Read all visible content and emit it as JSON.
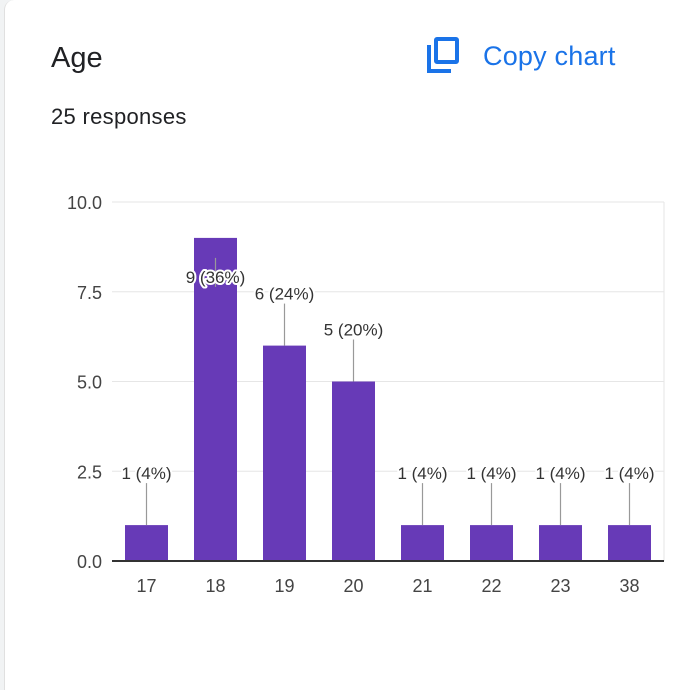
{
  "header": {
    "title": "Age",
    "responses": "25 responses",
    "copy_label": "Copy chart"
  },
  "colors": {
    "bar": "#673ab7",
    "accent": "#1a73e8"
  },
  "icons": {
    "copy": "copy-icon"
  },
  "chart_data": {
    "type": "bar",
    "title": "Age",
    "xlabel": "",
    "ylabel": "",
    "categories": [
      "17",
      "18",
      "19",
      "20",
      "21",
      "22",
      "23",
      "38"
    ],
    "values": [
      1,
      9,
      6,
      5,
      1,
      1,
      1,
      1
    ],
    "data_labels": [
      "1 (4%)",
      "9 (36%)",
      "6 (24%)",
      "5 (20%)",
      "1 (4%)",
      "1 (4%)",
      "1 (4%)",
      "1 (4%)"
    ],
    "yticks": [
      "0.0",
      "2.5",
      "5.0",
      "7.5",
      "10.0"
    ],
    "ylim": [
      0,
      10
    ],
    "grid": true,
    "legend": "none"
  }
}
